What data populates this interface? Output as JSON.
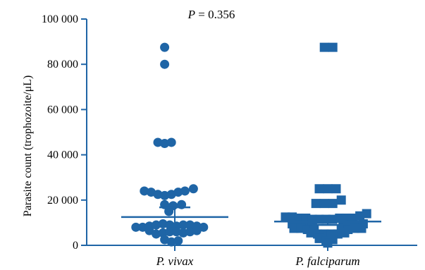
{
  "chart_data": {
    "type": "scatter",
    "annotation": {
      "prefix": "P",
      "text": " = 0.356"
    },
    "ylabel": "Parasite count (trophozoite/μL)",
    "xlabel": "",
    "ylim": [
      0,
      100000
    ],
    "yticks": [
      0,
      20000,
      40000,
      60000,
      80000,
      100000
    ],
    "ytick_labels": [
      "0",
      "20 000",
      "40 000",
      "60 000",
      "80 000",
      "100 000"
    ],
    "categories": [
      "P. vivax",
      "P. falciparum"
    ],
    "color": "#1f65a6",
    "series": [
      {
        "category": "P. vivax",
        "marker": "circle",
        "mean": 12500,
        "sem_low": 8500,
        "sem_high": 16800,
        "points": [
          [
            -0.12,
            87500
          ],
          [
            -0.12,
            80000
          ],
          [
            -0.2,
            45500
          ],
          [
            -0.12,
            45000
          ],
          [
            -0.04,
            45500
          ],
          [
            -0.36,
            24000
          ],
          [
            -0.28,
            23500
          ],
          [
            -0.2,
            22500
          ],
          [
            -0.12,
            22000
          ],
          [
            -0.04,
            22500
          ],
          [
            0.04,
            23500
          ],
          [
            0.12,
            24000
          ],
          [
            0.22,
            25000
          ],
          [
            -0.12,
            18000
          ],
          [
            -0.02,
            17500
          ],
          [
            0.08,
            18000
          ],
          [
            -0.07,
            15000
          ],
          [
            -0.46,
            8000
          ],
          [
            -0.38,
            8000
          ],
          [
            -0.3,
            8500
          ],
          [
            -0.22,
            9000
          ],
          [
            -0.14,
            9500
          ],
          [
            -0.06,
            9000
          ],
          [
            0.02,
            8500
          ],
          [
            0.1,
            9000
          ],
          [
            0.18,
            9000
          ],
          [
            0.26,
            8500
          ],
          [
            0.34,
            8000
          ],
          [
            -0.3,
            6500
          ],
          [
            -0.22,
            5000
          ],
          [
            -0.14,
            5500
          ],
          [
            -0.06,
            6000
          ],
          [
            0.02,
            6000
          ],
          [
            0.1,
            5500
          ],
          [
            0.18,
            6000
          ],
          [
            0.26,
            6500
          ],
          [
            -0.12,
            2500
          ],
          [
            -0.04,
            1500
          ],
          [
            0.04,
            2000
          ]
        ]
      },
      {
        "category": "P. falciparum",
        "marker": "square",
        "mean": 10500,
        "sem_low": 9000,
        "sem_high": 12200,
        "points": [
          [
            -0.04,
            87500
          ],
          [
            0.06,
            87500
          ],
          [
            -0.1,
            25000
          ],
          [
            0.0,
            25000
          ],
          [
            0.1,
            25000
          ],
          [
            -0.14,
            18500
          ],
          [
            -0.04,
            18500
          ],
          [
            0.06,
            18500
          ],
          [
            0.16,
            20000
          ],
          [
            -0.5,
            12500
          ],
          [
            -0.42,
            12500
          ],
          [
            -0.34,
            12000
          ],
          [
            -0.26,
            12000
          ],
          [
            -0.18,
            11500
          ],
          [
            -0.1,
            11500
          ],
          [
            -0.02,
            11500
          ],
          [
            0.06,
            11500
          ],
          [
            0.14,
            12000
          ],
          [
            0.22,
            12000
          ],
          [
            0.3,
            12000
          ],
          [
            0.38,
            13000
          ],
          [
            0.46,
            14000
          ],
          [
            -0.42,
            9500
          ],
          [
            -0.34,
            9000
          ],
          [
            -0.26,
            9000
          ],
          [
            -0.18,
            9500
          ],
          [
            0.18,
            9500
          ],
          [
            0.26,
            9000
          ],
          [
            0.34,
            9000
          ],
          [
            0.42,
            9500
          ],
          [
            -0.4,
            7500
          ],
          [
            -0.32,
            7500
          ],
          [
            -0.24,
            7000
          ],
          [
            -0.16,
            7000
          ],
          [
            0.16,
            7000
          ],
          [
            0.24,
            7000
          ],
          [
            0.32,
            7500
          ],
          [
            0.4,
            7500
          ],
          [
            -0.2,
            5500
          ],
          [
            -0.12,
            5000
          ],
          [
            -0.04,
            5000
          ],
          [
            0.04,
            5000
          ],
          [
            0.12,
            5000
          ],
          [
            0.2,
            5500
          ],
          [
            -0.1,
            3000
          ],
          [
            -0.02,
            2000
          ],
          [
            0.06,
            2500
          ],
          [
            0.0,
            1000
          ]
        ]
      }
    ]
  }
}
